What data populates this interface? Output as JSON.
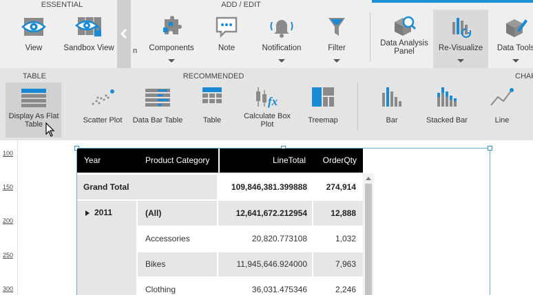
{
  "ribbon": {
    "sections": {
      "essential": "ESSENTIAL",
      "add_edit": "ADD / EDIT"
    },
    "cut_letter": "n",
    "tools": {
      "view": "View",
      "sandbox_view": "Sandbox View",
      "components": "Components",
      "note": "Note",
      "notification": "Notification",
      "filter": "Filter",
      "data_analysis_panel": "Data Analysis Panel",
      "re_visualize": "Re-Visualize",
      "data_tools": "Data Tools"
    }
  },
  "visualize": {
    "sections": {
      "table": "TABLE",
      "recommended": "RECOMMENDED",
      "charts": "CHAR"
    },
    "items": {
      "flat_table": "Display As Flat Table",
      "scatter": "Scatter Plot",
      "data_bar_table": "Data Bar Table",
      "table": "Table",
      "box_plot": "Calculate Box Plot",
      "treemap": "Treemap",
      "bar": "Bar",
      "stacked_bar": "Stacked Bar",
      "line": "Line"
    }
  },
  "ruler": [
    "100",
    "150",
    "200",
    "250",
    "300"
  ],
  "table": {
    "columns": {
      "year": "Year",
      "category": "Product Category",
      "line_total": "LineTotal",
      "order_qty": "OrderQty"
    },
    "grand_total": {
      "label": "Grand Total",
      "line_total": "109,846,381.399888",
      "order_qty": "274,914"
    },
    "year_group": {
      "label": "2011",
      "rows": [
        {
          "category": "(All)",
          "line_total": "12,641,672.212954",
          "order_qty": "12,888"
        },
        {
          "category": "Accessories",
          "line_total": "20,820.773108",
          "order_qty": "1,032"
        },
        {
          "category": "Bikes",
          "line_total": "11,945,646.924000",
          "order_qty": "7,963"
        },
        {
          "category": "Clothing",
          "line_total": "36,031.475346",
          "order_qty": "2,246"
        }
      ]
    }
  },
  "colors": {
    "accent": "#1f8fd6",
    "icon_blue": "#1a8ad4",
    "icon_gray": "#8a8a8a",
    "header_bg": "#000000",
    "row_gray": "#e6e6e6"
  }
}
